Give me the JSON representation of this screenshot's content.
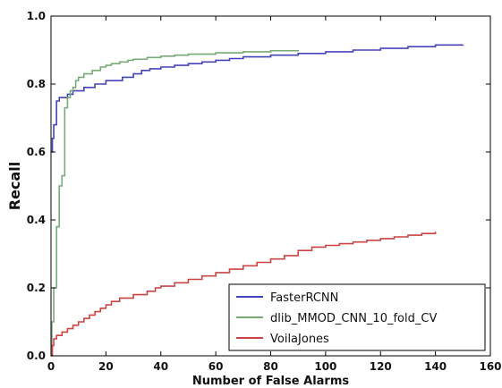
{
  "chart_data": {
    "type": "line",
    "title": "",
    "xlabel": "Number of False Alarms",
    "ylabel": "Recall",
    "xlim": [
      0,
      160
    ],
    "ylim": [
      0.0,
      1.0
    ],
    "xticks": [
      0,
      20,
      40,
      60,
      80,
      100,
      120,
      140,
      160
    ],
    "yticks": [
      0.0,
      0.2,
      0.4,
      0.6,
      0.8,
      1.0
    ],
    "xtick_labels": [
      "0",
      "20",
      "40",
      "60",
      "80",
      "100",
      "120",
      "140",
      "160"
    ],
    "ytick_labels": [
      "0.0",
      "0.2",
      "0.4",
      "0.6",
      "0.8",
      "1.0"
    ],
    "grid": false,
    "legend_position": "lower-right",
    "step": true,
    "series": [
      {
        "name": "FasterRCNN",
        "color": "#4444bb",
        "x": [
          0,
          0.5,
          1,
          2,
          3,
          4,
          6,
          8,
          10,
          12,
          14,
          16,
          18,
          20,
          22,
          24,
          26,
          28,
          30,
          33,
          36,
          40,
          45,
          50,
          55,
          60,
          65,
          70,
          80,
          90,
          100,
          110,
          120,
          130,
          140,
          150
        ],
        "y": [
          0.6,
          0.64,
          0.68,
          0.75,
          0.76,
          0.76,
          0.77,
          0.78,
          0.78,
          0.79,
          0.79,
          0.8,
          0.8,
          0.81,
          0.81,
          0.81,
          0.82,
          0.82,
          0.83,
          0.84,
          0.845,
          0.85,
          0.855,
          0.86,
          0.865,
          0.87,
          0.875,
          0.88,
          0.885,
          0.89,
          0.895,
          0.9,
          0.905,
          0.91,
          0.915,
          0.916
        ]
      },
      {
        "name": "dlib_MMOD_CNN_10_fold_CV",
        "color": "#77aa77",
        "x": [
          0,
          0.3,
          1,
          2,
          3,
          4,
          5,
          6,
          7,
          8,
          9,
          10,
          12,
          15,
          18,
          20,
          22,
          25,
          28,
          30,
          35,
          40,
          45,
          50,
          60,
          70,
          80,
          90
        ],
        "y": [
          0.0,
          0.1,
          0.2,
          0.38,
          0.5,
          0.53,
          0.73,
          0.76,
          0.78,
          0.79,
          0.81,
          0.82,
          0.83,
          0.84,
          0.85,
          0.855,
          0.86,
          0.865,
          0.87,
          0.873,
          0.878,
          0.882,
          0.885,
          0.888,
          0.892,
          0.895,
          0.898,
          0.9
        ]
      },
      {
        "name": "VoilaJones",
        "color": "#cc4444",
        "x": [
          0,
          0.5,
          1,
          2,
          4,
          6,
          8,
          10,
          12,
          14,
          16,
          18,
          20,
          22,
          25,
          30,
          35,
          38,
          40,
          45,
          50,
          55,
          60,
          65,
          70,
          75,
          80,
          85,
          90,
          95,
          100,
          105,
          110,
          115,
          120,
          125,
          130,
          135,
          140
        ],
        "y": [
          0.0,
          0.03,
          0.05,
          0.06,
          0.07,
          0.08,
          0.09,
          0.1,
          0.11,
          0.12,
          0.13,
          0.14,
          0.15,
          0.16,
          0.17,
          0.18,
          0.19,
          0.2,
          0.205,
          0.215,
          0.225,
          0.235,
          0.245,
          0.255,
          0.265,
          0.275,
          0.285,
          0.295,
          0.31,
          0.32,
          0.325,
          0.33,
          0.335,
          0.34,
          0.345,
          0.35,
          0.355,
          0.36,
          0.365
        ]
      }
    ]
  }
}
